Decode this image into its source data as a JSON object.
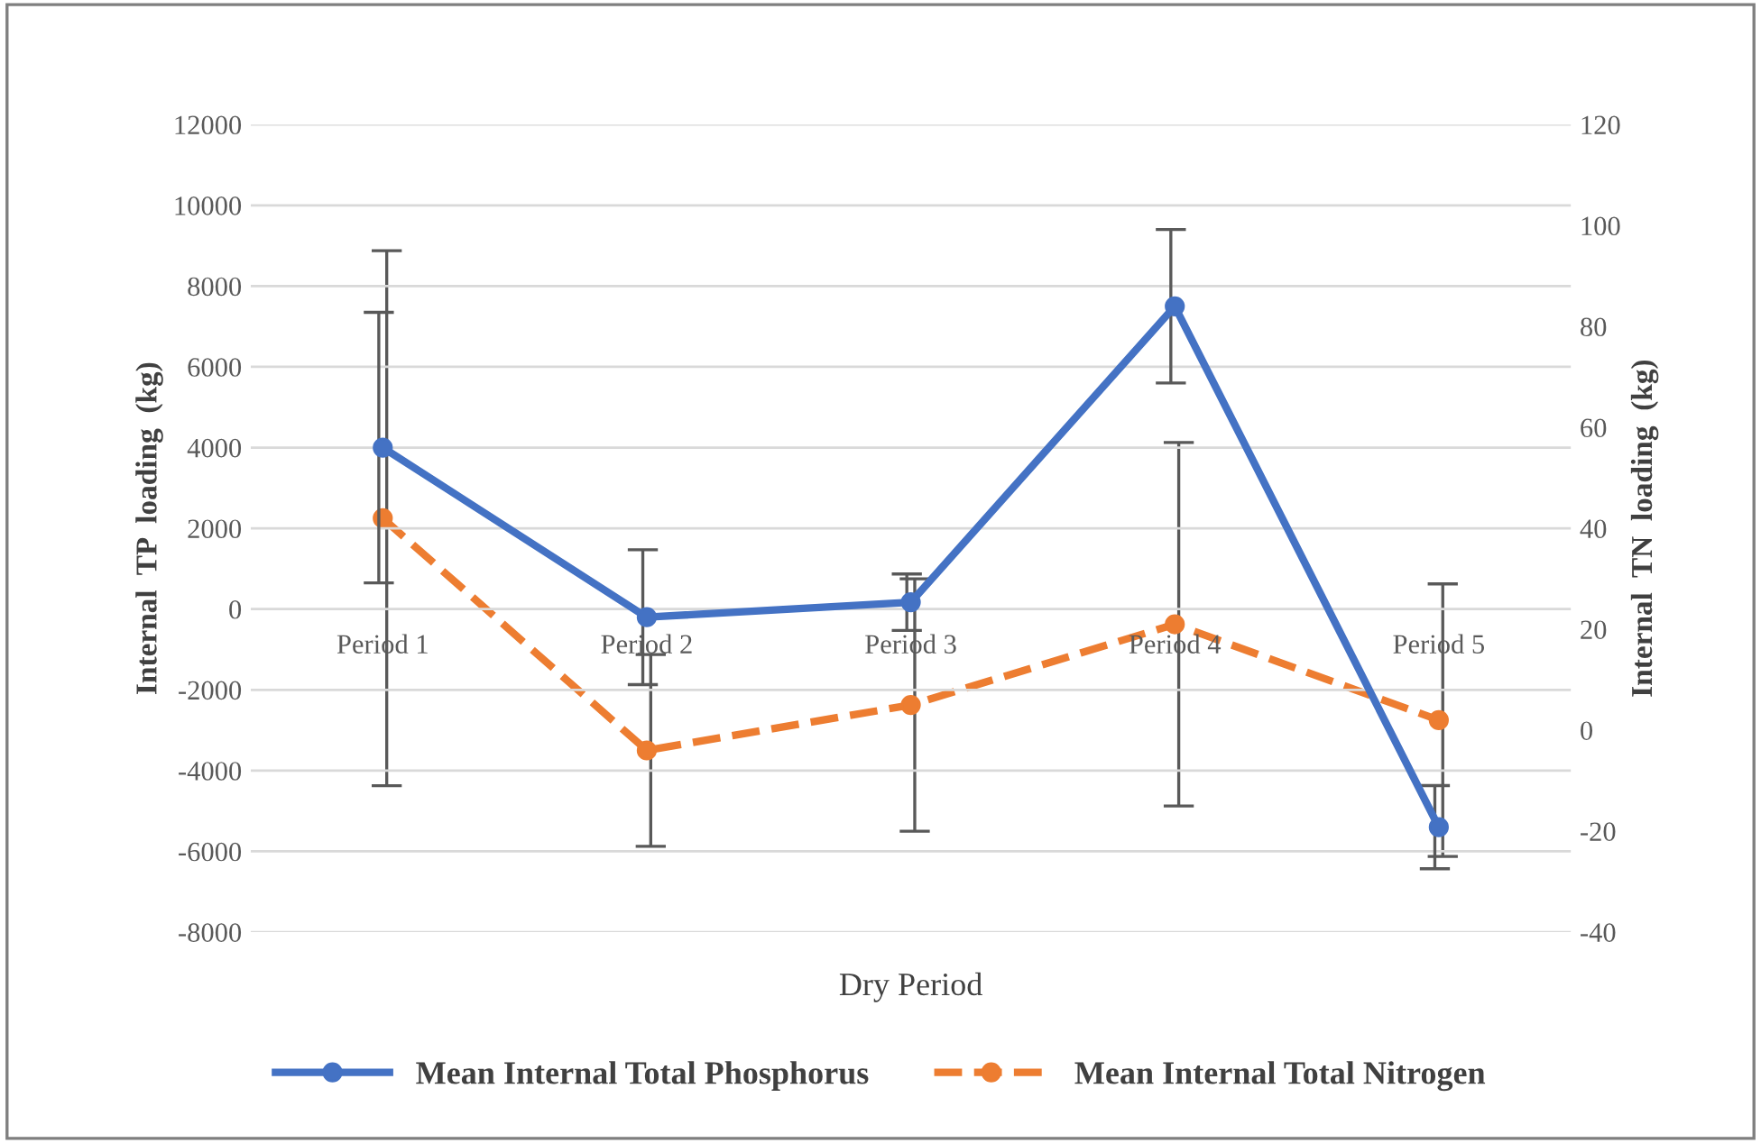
{
  "chart_data": {
    "type": "line",
    "categories": [
      "Period 1",
      "Period 2",
      "Period 3",
      "Period 4",
      "Period 5"
    ],
    "xlabel": "Dry Period",
    "ylabel": "Internal  TP  loading  (kg)",
    "y2label": "Internal  TN  loading  (kg)",
    "series": [
      {
        "name": "Mean Internal Total Phosphorus",
        "color": "#4472c4",
        "values": [
          4000,
          -200,
          170,
          7500,
          -5400
        ],
        "errors": [
          3350,
          1670,
          700,
          1900,
          1030
        ],
        "line_style": "solid",
        "marker": "circle"
      },
      {
        "name": "Mean Internal Total Nitrogen",
        "color": "#ed7d31",
        "axis": "y2",
        "values": [
          42,
          -4,
          5,
          21,
          2
        ],
        "errors": [
          53,
          19,
          25,
          36,
          27
        ],
        "line_style": "dashed",
        "marker": "circle"
      }
    ],
    "ylim": [
      -8000,
      12000
    ],
    "yticks": [
      -8000,
      -6000,
      -4000,
      -2000,
      0,
      2000,
      4000,
      6000,
      8000,
      10000,
      12000
    ],
    "y2lim": [
      -40,
      120
    ],
    "y2ticks": [
      -40,
      -20,
      0,
      20,
      40,
      60,
      80,
      100,
      120
    ],
    "grid": "y",
    "legend": "bottom"
  }
}
